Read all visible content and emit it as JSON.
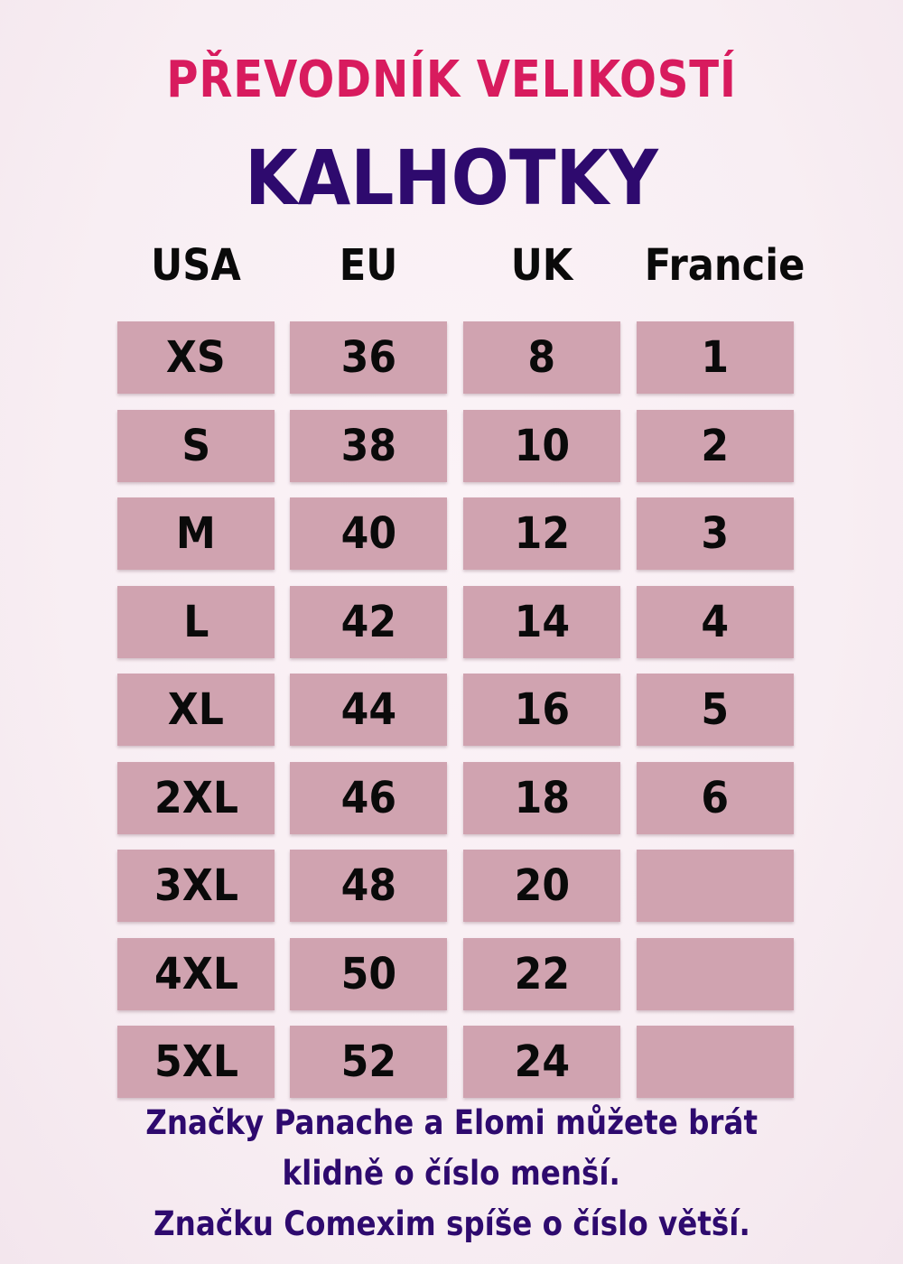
{
  "title": "PŘEVODNÍK VELIKOSTÍ",
  "subtitle": "KALHOTKY",
  "colors": {
    "title": "#d81b5e",
    "subtitle": "#2e0a6e",
    "cell": "#d0a3b0",
    "note": "#2e0a6e"
  },
  "headers": [
    "USA",
    "EU",
    "UK",
    "Francie"
  ],
  "rows": [
    [
      "XS",
      "36",
      "8",
      "1"
    ],
    [
      "S",
      "38",
      "10",
      "2"
    ],
    [
      "M",
      "40",
      "12",
      "3"
    ],
    [
      "L",
      "42",
      "14",
      "4"
    ],
    [
      "XL",
      "44",
      "16",
      "5"
    ],
    [
      "2XL",
      "46",
      "18",
      "6"
    ],
    [
      "3XL",
      "48",
      "20",
      ""
    ],
    [
      "4XL",
      "50",
      "22",
      ""
    ],
    [
      "5XL",
      "52",
      "24",
      ""
    ]
  ],
  "notes": [
    "Značky Panache a Elomi můžete brát",
    "klidně o číslo menší.",
    "Značku Comexim spíše o číslo větší."
  ]
}
